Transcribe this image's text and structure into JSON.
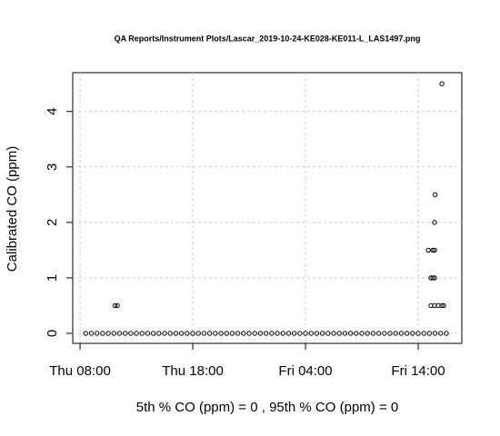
{
  "chart_data": {
    "type": "scatter",
    "title": "QA Reports/Instrument Plots/Lascar_2019-10-24-KE028-KE011-L_LAS1497.png",
    "x_label": "5th % CO (ppm) =  0 , 95th % CO (ppm)  =  0",
    "y_label": "Calibrated CO (ppm)",
    "xlim": [
      7.35,
      41.87
    ],
    "ylim": [
      -0.18,
      4.7
    ],
    "xticks": [
      {
        "value": 8,
        "label": "Thu 08:00"
      },
      {
        "value": 18,
        "label": "Thu 18:00"
      },
      {
        "value": 28,
        "label": "Fri 04:00"
      },
      {
        "value": 38,
        "label": "Fri 14:00"
      }
    ],
    "yticks": [
      0,
      1,
      2,
      3,
      4
    ],
    "grid": true,
    "color": "#000000",
    "series": [
      {
        "name": null,
        "x": [
          8.5,
          9,
          9.5,
          10,
          10.5,
          11,
          11.5,
          12,
          12.5,
          13,
          13.5,
          14,
          14.5,
          15,
          15.5,
          16,
          16.5,
          17,
          17.5,
          18,
          18.5,
          19,
          19.5,
          20,
          20.5,
          21,
          21.5,
          22,
          22.5,
          23,
          23.5,
          24,
          24.5,
          25,
          25.5,
          26,
          26.5,
          27,
          27.5,
          28,
          28.5,
          29,
          29.5,
          30,
          30.5,
          31,
          31.5,
          32,
          32.5,
          33,
          33.5,
          34,
          34.5,
          35,
          35.5,
          36,
          36.5,
          37,
          37.5,
          38,
          38.5,
          39,
          39.5,
          40,
          40.5,
          11.1,
          11.3,
          39.13,
          39.45,
          39.77,
          40.1,
          40.26,
          39.13,
          39.3,
          39.45,
          38.9,
          39.3,
          39.45,
          39.45,
          39.5,
          40.1
        ],
        "values": [
          0,
          0,
          0,
          0,
          0,
          0,
          0,
          0,
          0,
          0,
          0,
          0,
          0,
          0,
          0,
          0,
          0,
          0,
          0,
          0,
          0,
          0,
          0,
          0,
          0,
          0,
          0,
          0,
          0,
          0,
          0,
          0,
          0,
          0,
          0,
          0,
          0,
          0,
          0,
          0,
          0,
          0,
          0,
          0,
          0,
          0,
          0,
          0,
          0,
          0,
          0,
          0,
          0,
          0,
          0,
          0,
          0,
          0,
          0,
          0,
          0,
          0,
          0,
          0,
          0,
          0.5,
          0.5,
          0.5,
          0.5,
          0.5,
          0.5,
          0.5,
          1,
          1,
          1,
          1.5,
          1.5,
          1.5,
          2,
          2.5,
          4.5
        ]
      }
    ]
  }
}
